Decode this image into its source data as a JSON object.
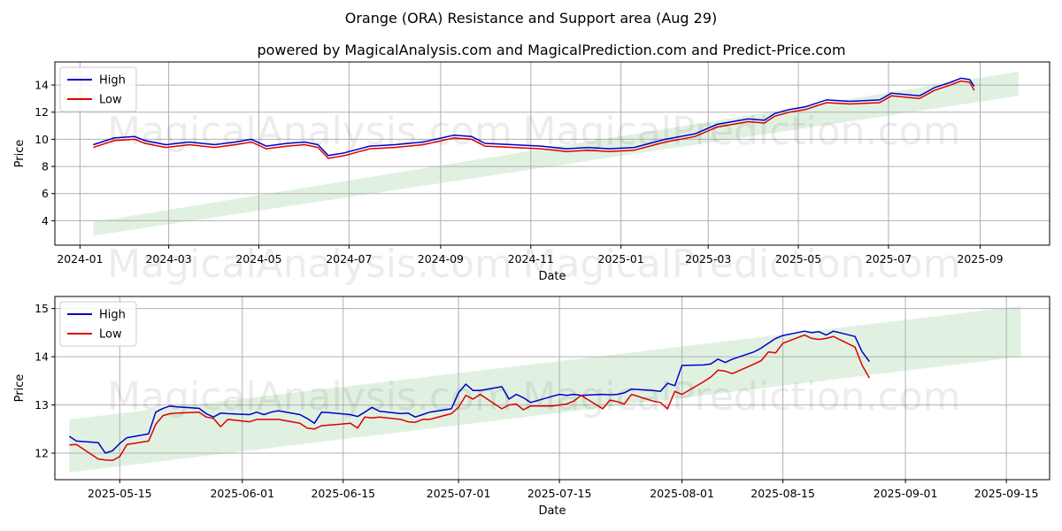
{
  "figure": {
    "title": "Orange (ORA) Resistance and Support area (Aug 29)",
    "subtitle": "powered by MagicalAnalysis.com and MagicalPrediction.com and Predict-Price.com",
    "watermarks": [
      "MagicalAnalysis.com",
      "MagicalPrediction.com"
    ]
  },
  "colors": {
    "high": "#0000cc",
    "low": "#dd0000",
    "band": "#c8e6c8",
    "grid": "#b0b0b0"
  },
  "chart_data": [
    {
      "type": "line",
      "xlabel": "Date",
      "ylabel": "Price",
      "xlim": [
        "2023-12-15",
        "2025-10-18"
      ],
      "ylim": [
        2.2,
        15.7
      ],
      "x_ticks": [
        "2024-01",
        "2024-03",
        "2024-05",
        "2024-07",
        "2024-09",
        "2024-11",
        "2025-01",
        "2025-03",
        "2025-05",
        "2025-07",
        "2025-09"
      ],
      "x_tick_dates": [
        "2024-01-01",
        "2024-03-01",
        "2024-05-01",
        "2024-07-01",
        "2024-09-01",
        "2024-11-01",
        "2025-01-01",
        "2025-03-01",
        "2025-05-01",
        "2025-07-01",
        "2025-09-01"
      ],
      "y_ticks": [
        4,
        6,
        8,
        10,
        12,
        14
      ],
      "grid": true,
      "legend": "top-left",
      "band": {
        "start": "2024-01-10",
        "end": "2025-09-27",
        "lower": [
          2.9,
          13.2
        ],
        "upper": [
          3.9,
          15.0
        ]
      },
      "series": [
        {
          "name": "High",
          "x": [
            "2024-01-10",
            "2024-01-24",
            "2024-02-07",
            "2024-02-14",
            "2024-02-28",
            "2024-03-15",
            "2024-04-01",
            "2024-04-15",
            "2024-04-26",
            "2024-05-06",
            "2024-05-20",
            "2024-06-01",
            "2024-06-10",
            "2024-06-17",
            "2024-06-28",
            "2024-07-15",
            "2024-08-01",
            "2024-08-20",
            "2024-09-10",
            "2024-09-22",
            "2024-10-01",
            "2024-10-20",
            "2024-11-08",
            "2024-11-25",
            "2024-12-10",
            "2024-12-24",
            "2025-01-10",
            "2025-01-31",
            "2025-02-20",
            "2025-03-07",
            "2025-03-28",
            "2025-04-08",
            "2025-04-15",
            "2025-04-25",
            "2025-05-06",
            "2025-05-20",
            "2025-06-05",
            "2025-06-25",
            "2025-07-03",
            "2025-07-22",
            "2025-08-01",
            "2025-08-12",
            "2025-08-19",
            "2025-08-25",
            "2025-08-28"
          ],
          "values": [
            9.6,
            10.1,
            10.2,
            9.9,
            9.6,
            9.8,
            9.6,
            9.8,
            10.0,
            9.5,
            9.7,
            9.8,
            9.6,
            8.8,
            9.0,
            9.5,
            9.6,
            9.8,
            10.3,
            10.2,
            9.7,
            9.6,
            9.5,
            9.3,
            9.4,
            9.3,
            9.4,
            10.0,
            10.4,
            11.1,
            11.5,
            11.4,
            11.9,
            12.2,
            12.4,
            12.9,
            12.8,
            12.9,
            13.4,
            13.2,
            13.8,
            14.2,
            14.5,
            14.4,
            13.9
          ]
        },
        {
          "name": "Low",
          "x": [
            "2024-01-10",
            "2024-01-24",
            "2024-02-07",
            "2024-02-14",
            "2024-02-28",
            "2024-03-15",
            "2024-04-01",
            "2024-04-15",
            "2024-04-26",
            "2024-05-06",
            "2024-05-20",
            "2024-06-01",
            "2024-06-10",
            "2024-06-17",
            "2024-06-28",
            "2024-07-15",
            "2024-08-01",
            "2024-08-20",
            "2024-09-10",
            "2024-09-22",
            "2024-10-01",
            "2024-10-20",
            "2024-11-08",
            "2024-11-25",
            "2024-12-10",
            "2024-12-24",
            "2025-01-10",
            "2025-01-31",
            "2025-02-20",
            "2025-03-07",
            "2025-03-28",
            "2025-04-08",
            "2025-04-15",
            "2025-04-25",
            "2025-05-06",
            "2025-05-20",
            "2025-06-05",
            "2025-06-25",
            "2025-07-03",
            "2025-07-22",
            "2025-08-01",
            "2025-08-12",
            "2025-08-19",
            "2025-08-25",
            "2025-08-28"
          ],
          "values": [
            9.4,
            9.9,
            10.0,
            9.7,
            9.4,
            9.6,
            9.4,
            9.6,
            9.8,
            9.3,
            9.5,
            9.6,
            9.4,
            8.6,
            8.8,
            9.3,
            9.4,
            9.6,
            10.1,
            10.0,
            9.5,
            9.4,
            9.3,
            9.1,
            9.2,
            9.1,
            9.2,
            9.8,
            10.2,
            10.9,
            11.3,
            11.2,
            11.7,
            12.0,
            12.2,
            12.7,
            12.6,
            12.7,
            13.2,
            13.0,
            13.6,
            14.0,
            14.3,
            14.2,
            13.6
          ]
        }
      ]
    },
    {
      "type": "line",
      "xlabel": "Date",
      "ylabel": "Price",
      "xlim": [
        "2025-05-06",
        "2025-09-21"
      ],
      "ylim": [
        11.45,
        15.25
      ],
      "x_ticks": [
        "2025-05-15",
        "2025-06-01",
        "2025-06-15",
        "2025-07-01",
        "2025-07-15",
        "2025-08-01",
        "2025-08-15",
        "2025-09-01",
        "2025-09-15"
      ],
      "x_tick_dates": [
        "2025-05-15",
        "2025-06-01",
        "2025-06-15",
        "2025-07-01",
        "2025-07-15",
        "2025-08-01",
        "2025-08-15",
        "2025-09-01",
        "2025-09-15"
      ],
      "y_ticks": [
        12,
        13,
        14,
        15
      ],
      "grid": true,
      "legend": "top-left",
      "band": {
        "start": "2025-05-08",
        "end": "2025-09-17",
        "lower": [
          11.6,
          14.0
        ],
        "upper": [
          12.7,
          15.05
        ]
      },
      "series": [
        {
          "name": "High",
          "x": [
            "2025-05-08",
            "2025-05-09",
            "2025-05-12",
            "2025-05-13",
            "2025-05-14",
            "2025-05-15",
            "2025-05-16",
            "2025-05-19",
            "2025-05-20",
            "2025-05-21",
            "2025-05-22",
            "2025-05-23",
            "2025-05-26",
            "2025-05-27",
            "2025-05-28",
            "2025-05-29",
            "2025-05-30",
            "2025-06-02",
            "2025-06-03",
            "2025-06-04",
            "2025-06-05",
            "2025-06-06",
            "2025-06-09",
            "2025-06-10",
            "2025-06-11",
            "2025-06-12",
            "2025-06-13",
            "2025-06-16",
            "2025-06-17",
            "2025-06-18",
            "2025-06-19",
            "2025-06-20",
            "2025-06-23",
            "2025-06-24",
            "2025-06-25",
            "2025-06-26",
            "2025-06-27",
            "2025-06-30",
            "2025-07-01",
            "2025-07-02",
            "2025-07-03",
            "2025-07-04",
            "2025-07-07",
            "2025-07-08",
            "2025-07-09",
            "2025-07-10",
            "2025-07-11",
            "2025-07-14",
            "2025-07-15",
            "2025-07-16",
            "2025-07-17",
            "2025-07-18",
            "2025-07-21",
            "2025-07-22",
            "2025-07-23",
            "2025-07-24",
            "2025-07-25",
            "2025-07-28",
            "2025-07-29",
            "2025-07-30",
            "2025-07-31",
            "2025-08-01",
            "2025-08-04",
            "2025-08-05",
            "2025-08-06",
            "2025-08-07",
            "2025-08-08",
            "2025-08-11",
            "2025-08-12",
            "2025-08-13",
            "2025-08-14",
            "2025-08-15",
            "2025-08-18",
            "2025-08-19",
            "2025-08-20",
            "2025-08-21",
            "2025-08-22",
            "2025-08-25",
            "2025-08-26",
            "2025-08-27"
          ],
          "values": [
            12.35,
            12.25,
            12.22,
            12.0,
            12.05,
            12.2,
            12.32,
            12.4,
            12.85,
            12.93,
            12.98,
            12.96,
            12.93,
            12.82,
            12.75,
            12.83,
            12.82,
            12.8,
            12.85,
            12.8,
            12.85,
            12.88,
            12.8,
            12.72,
            12.62,
            12.85,
            12.84,
            12.8,
            12.76,
            12.85,
            12.95,
            12.87,
            12.82,
            12.83,
            12.75,
            12.8,
            12.85,
            12.92,
            13.25,
            13.43,
            13.3,
            13.3,
            13.38,
            13.12,
            13.22,
            13.15,
            13.05,
            13.18,
            13.22,
            13.2,
            13.22,
            13.2,
            13.22,
            13.21,
            13.22,
            13.25,
            13.33,
            13.3,
            13.28,
            13.45,
            13.4,
            13.82,
            13.83,
            13.85,
            13.95,
            13.88,
            13.95,
            14.1,
            14.18,
            14.28,
            14.38,
            14.44,
            14.53,
            14.5,
            14.52,
            14.45,
            14.53,
            14.42,
            14.1,
            13.9
          ]
        },
        {
          "name": "Low",
          "x": [
            "2025-05-08",
            "2025-05-09",
            "2025-05-12",
            "2025-05-13",
            "2025-05-14",
            "2025-05-15",
            "2025-05-16",
            "2025-05-19",
            "2025-05-20",
            "2025-05-21",
            "2025-05-22",
            "2025-05-23",
            "2025-05-26",
            "2025-05-27",
            "2025-05-28",
            "2025-05-29",
            "2025-05-30",
            "2025-06-02",
            "2025-06-03",
            "2025-06-04",
            "2025-06-05",
            "2025-06-06",
            "2025-06-09",
            "2025-06-10",
            "2025-06-11",
            "2025-06-12",
            "2025-06-13",
            "2025-06-16",
            "2025-06-17",
            "2025-06-18",
            "2025-06-19",
            "2025-06-20",
            "2025-06-23",
            "2025-06-24",
            "2025-06-25",
            "2025-06-26",
            "2025-06-27",
            "2025-06-30",
            "2025-07-01",
            "2025-07-02",
            "2025-07-03",
            "2025-07-04",
            "2025-07-07",
            "2025-07-08",
            "2025-07-09",
            "2025-07-10",
            "2025-07-11",
            "2025-07-14",
            "2025-07-15",
            "2025-07-16",
            "2025-07-17",
            "2025-07-18",
            "2025-07-21",
            "2025-07-22",
            "2025-07-23",
            "2025-07-24",
            "2025-07-25",
            "2025-07-28",
            "2025-07-29",
            "2025-07-30",
            "2025-07-31",
            "2025-08-01",
            "2025-08-04",
            "2025-08-05",
            "2025-08-06",
            "2025-08-07",
            "2025-08-08",
            "2025-08-11",
            "2025-08-12",
            "2025-08-13",
            "2025-08-14",
            "2025-08-15",
            "2025-08-18",
            "2025-08-19",
            "2025-08-20",
            "2025-08-21",
            "2025-08-22",
            "2025-08-25",
            "2025-08-26",
            "2025-08-27"
          ],
          "values": [
            12.17,
            12.18,
            11.88,
            11.86,
            11.85,
            11.93,
            12.18,
            12.25,
            12.6,
            12.78,
            12.82,
            12.83,
            12.85,
            12.75,
            12.72,
            12.55,
            12.7,
            12.65,
            12.7,
            12.7,
            12.7,
            12.7,
            12.62,
            12.52,
            12.5,
            12.57,
            12.58,
            12.62,
            12.52,
            12.75,
            12.73,
            12.75,
            12.7,
            12.65,
            12.64,
            12.7,
            12.7,
            12.82,
            12.95,
            13.2,
            13.12,
            13.22,
            12.92,
            13.0,
            13.02,
            12.9,
            12.98,
            12.98,
            13.0,
            13.02,
            13.08,
            13.2,
            12.92,
            13.1,
            13.07,
            13.02,
            13.22,
            13.08,
            13.05,
            12.92,
            13.28,
            13.22,
            13.48,
            13.58,
            13.72,
            13.7,
            13.65,
            13.85,
            13.92,
            14.1,
            14.08,
            14.28,
            14.45,
            14.38,
            14.36,
            14.38,
            14.42,
            14.2,
            13.82,
            13.56
          ]
        }
      ]
    }
  ]
}
